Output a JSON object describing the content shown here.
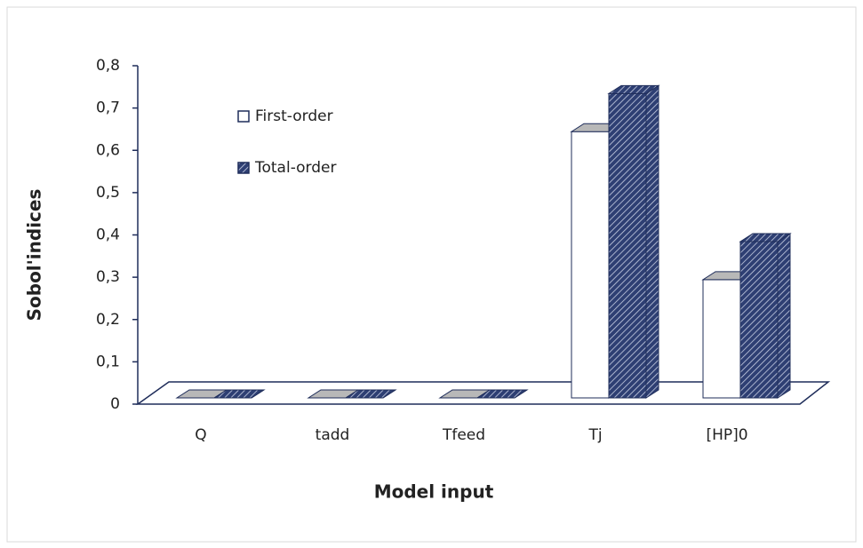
{
  "chart_data": {
    "type": "bar3d",
    "xlabel": "Model input",
    "ylabel": "Sobol'indices",
    "categories": [
      "Q",
      "tadd",
      "Tfeed",
      "Tj",
      "[HP]0"
    ],
    "series": [
      {
        "name": "First-order",
        "color": "#ffffff",
        "values": [
          0,
          0,
          0,
          0.64,
          0.29
        ]
      },
      {
        "name": "Total-order",
        "color": "#2e3f73",
        "values": [
          0,
          0,
          0,
          0.73,
          0.38
        ]
      }
    ],
    "ylim": [
      0,
      0.8
    ],
    "yticks": [
      0,
      {
        "value": 0.1,
        "label": "0,1"
      },
      {
        "value": 0.2,
        "label": "0,2"
      },
      {
        "value": 0.3,
        "label": "0,3"
      },
      {
        "value": 0.4,
        "label": "0,4"
      },
      {
        "value": 0.5,
        "label": "0,5"
      },
      {
        "value": 0.6,
        "label": "0,6"
      },
      {
        "value": 0.7,
        "label": "0,7"
      },
      {
        "value": 0.8,
        "label": "0,8"
      }
    ],
    "legend": "upper left"
  }
}
